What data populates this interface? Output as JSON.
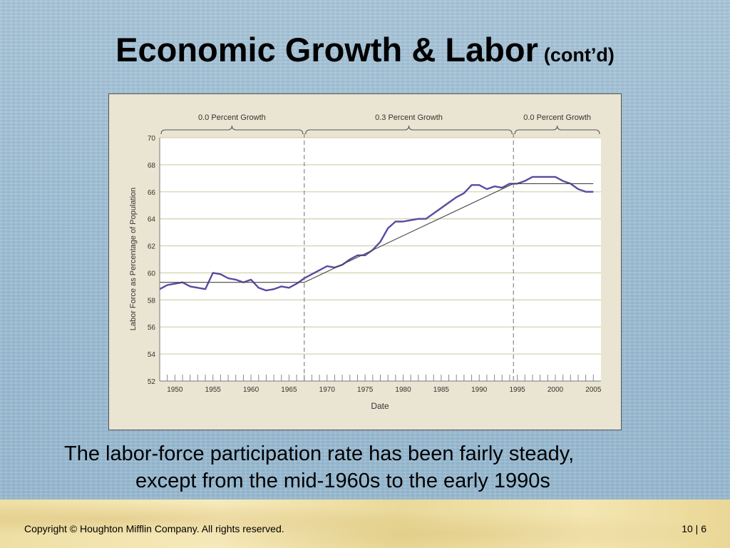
{
  "slide": {
    "title": "Economic Growth & Labor",
    "title_suffix": "(cont’d)",
    "caption_line1": "The labor-force participation rate has been fairly steady,",
    "caption_line2": "except from the mid-1960s to the early 1990s",
    "copyright": "Copyright © Houghton Mifflin Company.  All rights reserved.",
    "page_number": "10 | 6"
  },
  "chart_data": {
    "type": "line",
    "title": "",
    "xlabel": "Date",
    "ylabel": "Labor Force as Percentage of Population",
    "xlim": [
      1948,
      2006
    ],
    "ylim": [
      52,
      70
    ],
    "x_ticks": [
      "1950",
      "1955",
      "1960",
      "1965",
      "1970",
      "1975",
      "1980",
      "1985",
      "1990",
      "1995",
      "2000",
      "2005"
    ],
    "y_ticks": [
      "52",
      "54",
      "56",
      "58",
      "60",
      "62",
      "64",
      "66",
      "68",
      "70"
    ],
    "grid": true,
    "periods": [
      {
        "label": "0.0 Percent Growth",
        "start": 1948,
        "end": 1967
      },
      {
        "label": "0.3 Percent Growth",
        "start": 1967,
        "end": 1994.5
      },
      {
        "label": "0.0 Percent Growth",
        "start": 1994.5,
        "end": 2006
      }
    ],
    "period_dividers": [
      1967,
      1994.5
    ],
    "series": [
      {
        "color": "#5b4aa0",
        "x": [
          1948,
          1949,
          1950,
          1951,
          1952,
          1953,
          1954,
          1955,
          1956,
          1957,
          1958,
          1959,
          1960,
          1961,
          1962,
          1963,
          1964,
          1965,
          1966,
          1967,
          1968,
          1969,
          1970,
          1971,
          1972,
          1973,
          1974,
          1975,
          1976,
          1977,
          1978,
          1979,
          1980,
          1981,
          1982,
          1983,
          1984,
          1985,
          1986,
          1987,
          1988,
          1989,
          1990,
          1991,
          1992,
          1993,
          1994,
          1995,
          1996,
          1997,
          1998,
          1999,
          2000,
          2001,
          2002,
          2003,
          2004,
          2005
        ],
        "values": [
          58.8,
          59.1,
          59.2,
          59.3,
          59.0,
          58.9,
          58.8,
          60.0,
          59.9,
          59.6,
          59.5,
          59.3,
          59.5,
          58.9,
          58.7,
          58.8,
          59.0,
          58.9,
          59.2,
          59.6,
          59.9,
          60.2,
          60.5,
          60.4,
          60.6,
          61.0,
          61.3,
          61.3,
          61.7,
          62.3,
          63.3,
          63.8,
          63.8,
          63.9,
          64.0,
          64.0,
          64.4,
          64.8,
          65.2,
          65.6,
          65.9,
          66.5,
          66.5,
          66.2,
          66.4,
          66.3,
          66.6,
          66.6,
          66.8,
          67.1,
          67.1,
          67.1,
          67.1,
          66.8,
          66.6,
          66.2,
          66.0,
          66.0
        ]
      },
      {
        "color": "#444444",
        "x": [
          1948,
          1967,
          1994.5,
          2005
        ],
        "values": [
          59.3,
          59.3,
          66.6,
          66.6
        ]
      }
    ]
  }
}
